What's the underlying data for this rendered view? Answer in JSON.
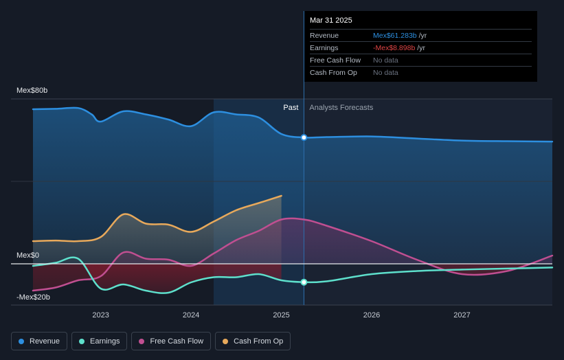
{
  "chart_data": {
    "type": "line",
    "y_unit": "Mex$ billions",
    "y_axis_labels": [
      {
        "value": 80,
        "text": "Mex$80b"
      },
      {
        "value": 0,
        "text": "Mex$0"
      },
      {
        "value": -20,
        "text": "-Mex$20b"
      }
    ],
    "ylim": [
      -20,
      80
    ],
    "xlim": [
      2022.25,
      2028.0
    ],
    "x_ticks": [
      {
        "value": 2023,
        "text": "2023"
      },
      {
        "value": 2024,
        "text": "2024"
      },
      {
        "value": 2025,
        "text": "2025"
      },
      {
        "value": 2026,
        "text": "2026"
      },
      {
        "value": 2027,
        "text": "2027"
      }
    ],
    "past_label": "Past",
    "forecast_label": "Analysts Forecasts",
    "divider_x": 2025.25,
    "series": [
      {
        "name": "Revenue",
        "color": "#2d8fe0",
        "points": [
          [
            2022.25,
            75
          ],
          [
            2022.5,
            75.2
          ],
          [
            2022.75,
            75.6
          ],
          [
            2022.9,
            72.5
          ],
          [
            2023.0,
            69
          ],
          [
            2023.25,
            74
          ],
          [
            2023.5,
            72.5
          ],
          [
            2023.75,
            70
          ],
          [
            2024.0,
            66.8
          ],
          [
            2024.25,
            73.5
          ],
          [
            2024.5,
            72.5
          ],
          [
            2024.75,
            71
          ],
          [
            2025.0,
            63
          ],
          [
            2025.25,
            61.3
          ],
          [
            2025.5,
            61.5
          ],
          [
            2026.0,
            61.8
          ],
          [
            2026.5,
            60.8
          ],
          [
            2027.0,
            59.8
          ],
          [
            2027.5,
            59.5
          ],
          [
            2028.0,
            59.3
          ]
        ]
      },
      {
        "name": "Earnings",
        "color": "#5ee0cc",
        "points": [
          [
            2022.25,
            -1
          ],
          [
            2022.5,
            0.5
          ],
          [
            2022.75,
            2.5
          ],
          [
            2023.0,
            -12
          ],
          [
            2023.25,
            -10
          ],
          [
            2023.5,
            -13
          ],
          [
            2023.75,
            -14
          ],
          [
            2024.0,
            -9
          ],
          [
            2024.25,
            -6.5
          ],
          [
            2024.5,
            -6.5
          ],
          [
            2024.75,
            -5
          ],
          [
            2025.0,
            -8
          ],
          [
            2025.25,
            -8.9
          ],
          [
            2025.5,
            -8.5
          ],
          [
            2026.0,
            -5
          ],
          [
            2026.5,
            -3.5
          ],
          [
            2027.0,
            -2.8
          ],
          [
            2027.5,
            -2.3
          ],
          [
            2028.0,
            -1.8
          ]
        ]
      },
      {
        "name": "Free Cash Flow",
        "color": "#c04f91",
        "points": [
          [
            2022.25,
            -13
          ],
          [
            2022.5,
            -11.5
          ],
          [
            2022.75,
            -8
          ],
          [
            2023.0,
            -6
          ],
          [
            2023.25,
            5.5
          ],
          [
            2023.5,
            2.5
          ],
          [
            2023.75,
            2
          ],
          [
            2024.0,
            -1
          ],
          [
            2024.25,
            5
          ],
          [
            2024.5,
            11.5
          ],
          [
            2024.75,
            16
          ],
          [
            2025.0,
            21.5
          ],
          [
            2025.25,
            21.5
          ],
          [
            2025.5,
            18.5
          ],
          [
            2026.0,
            11
          ],
          [
            2026.5,
            2
          ],
          [
            2027.0,
            -5
          ],
          [
            2027.5,
            -3.5
          ],
          [
            2028.0,
            4
          ]
        ]
      },
      {
        "name": "Cash From Op",
        "color": "#e8a95b",
        "points": [
          [
            2022.25,
            11
          ],
          [
            2022.5,
            11.3
          ],
          [
            2022.75,
            11
          ],
          [
            2023.0,
            13
          ],
          [
            2023.25,
            24
          ],
          [
            2023.5,
            19.5
          ],
          [
            2023.75,
            19
          ],
          [
            2024.0,
            15.5
          ],
          [
            2024.25,
            20.5
          ],
          [
            2024.5,
            26
          ],
          [
            2024.75,
            29.5
          ],
          [
            2025.0,
            33
          ]
        ]
      }
    ],
    "highlight": {
      "x": 2025.25,
      "revenue": 61.3,
      "earnings": -8.9
    }
  },
  "tooltip": {
    "date": "Mar 31 2025",
    "rows": [
      {
        "label": "Revenue",
        "value": "Mex$61.283b",
        "unit": "/yr",
        "color": "#2d8fe0"
      },
      {
        "label": "Earnings",
        "value": "-Mex$8.898b",
        "unit": "/yr",
        "color": "#e04545"
      },
      {
        "label": "Free Cash Flow",
        "value": "No data",
        "unit": "",
        "color": ""
      },
      {
        "label": "Cash From Op",
        "value": "No data",
        "unit": "",
        "color": ""
      }
    ]
  },
  "legend": [
    {
      "label": "Revenue",
      "color": "#2d8fe0"
    },
    {
      "label": "Earnings",
      "color": "#5ee0cc"
    },
    {
      "label": "Free Cash Flow",
      "color": "#c04f91"
    },
    {
      "label": "Cash From Op",
      "color": "#e8a95b"
    }
  ]
}
